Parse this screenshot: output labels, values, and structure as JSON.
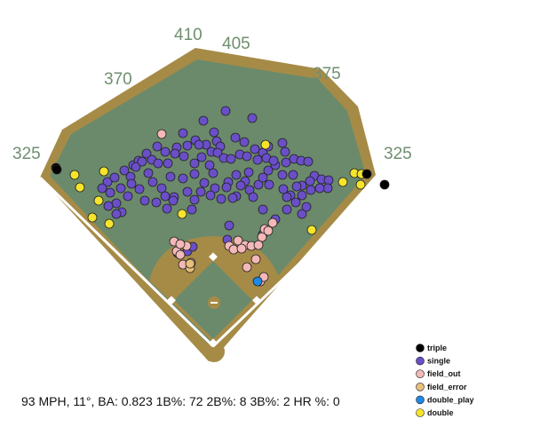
{
  "summary_text": "93 MPH, 11°, BA: 0.823 1B%: 72 2B%: 8 3B%: 2 HR %: 0",
  "colors": {
    "grass": "#6b8a6b",
    "dirt": "#a68b47",
    "infield_grass": "#6b8a6b",
    "lines": "#ffffff",
    "bases": "#ffffff",
    "text": "#6f8f6f"
  },
  "chart_data": {
    "type": "scatter",
    "title": "",
    "xlabel": "",
    "ylabel": "",
    "wall_distances": [
      "325",
      "370",
      "410",
      "405",
      "375",
      "325"
    ],
    "legend": [
      {
        "label": "triple",
        "color": "#000000"
      },
      {
        "label": "single",
        "color": "#6a4fc9"
      },
      {
        "label": "field_out",
        "color": "#f4b8b8"
      },
      {
        "label": "field_error",
        "color": "#e8c07a"
      },
      {
        "label": "double_play",
        "color": "#1e88e5"
      },
      {
        "label": "double",
        "color": "#f5e42b"
      }
    ],
    "series": [
      {
        "name": "triple",
        "points": [
          [
            63,
            189
          ],
          [
            64,
            191
          ],
          [
            413,
            196
          ],
          [
            433,
            208
          ]
        ]
      },
      {
        "name": "double",
        "points": [
          [
            84,
            197
          ],
          [
            90,
            211
          ],
          [
            117,
            193
          ],
          [
            111,
            226
          ],
          [
            104,
            245
          ],
          [
            123,
            252
          ],
          [
            205,
            241
          ],
          [
            299,
            163
          ],
          [
            351,
            259
          ],
          [
            386,
            205
          ],
          [
            399,
            195
          ],
          [
            406,
            208
          ],
          [
            407,
            196
          ]
        ]
      },
      {
        "name": "field_out",
        "points": [
          [
            182,
            151
          ],
          [
            196,
            272
          ],
          [
            199,
            283
          ],
          [
            203,
            287
          ],
          [
            210,
            277
          ],
          [
            206,
            298
          ],
          [
            215,
            296
          ],
          [
            203,
            275
          ],
          [
            258,
            277
          ],
          [
            263,
            281
          ],
          [
            268,
            271
          ],
          [
            276,
            276
          ],
          [
            283,
            277
          ],
          [
            291,
            276
          ],
          [
            295,
            267
          ],
          [
            298,
            258
          ],
          [
            307,
            251
          ],
          [
            302,
            260
          ],
          [
            288,
            292
          ],
          [
            293,
            317
          ],
          [
            297,
            312
          ],
          [
            278,
            301
          ],
          [
            272,
            280
          ]
        ]
      },
      {
        "name": "field_error",
        "points": [
          [
            214,
            302
          ],
          [
            214,
            297
          ]
        ]
      },
      {
        "name": "double_play",
        "points": [
          [
            290,
            317
          ]
        ]
      },
      {
        "name": "single",
        "points": [
          [
            229,
            136
          ],
          [
            254,
            125
          ],
          [
            284,
            133
          ],
          [
            206,
            150
          ],
          [
            220,
            158
          ],
          [
            232,
            163
          ],
          [
            241,
            149
          ],
          [
            244,
            159
          ],
          [
            248,
            165
          ],
          [
            265,
            155
          ],
          [
            275,
            160
          ],
          [
            287,
            168
          ],
          [
            296,
            172
          ],
          [
            302,
            165
          ],
          [
            318,
            161
          ],
          [
            321,
            171
          ],
          [
            150,
            186
          ],
          [
            156,
            181
          ],
          [
            165,
            173
          ],
          [
            177,
            165
          ],
          [
            186,
            171
          ],
          [
            199,
            166
          ],
          [
            211,
            164
          ],
          [
            224,
            163
          ],
          [
            238,
            171
          ],
          [
            245,
            172
          ],
          [
            252,
            178
          ],
          [
            260,
            179
          ],
          [
            270,
            174
          ],
          [
            278,
            176
          ],
          [
            290,
            180
          ],
          [
            300,
            178
          ],
          [
            310,
            186
          ],
          [
            322,
            183
          ],
          [
            331,
            179
          ],
          [
            339,
            181
          ],
          [
            347,
            182
          ],
          [
            354,
            198
          ],
          [
            362,
            202
          ],
          [
            370,
            203
          ],
          [
            369,
            212
          ],
          [
            360,
            212
          ],
          [
            349,
            204
          ],
          [
            340,
            209
          ],
          [
            330,
            197
          ],
          [
            318,
            197
          ],
          [
            140,
            192
          ],
          [
            147,
            199
          ],
          [
            153,
            188
          ],
          [
            160,
            182
          ],
          [
            167,
            195
          ],
          [
            171,
            180
          ],
          [
            178,
            184
          ],
          [
            189,
            184
          ],
          [
            197,
            173
          ],
          [
            207,
            176
          ],
          [
            219,
            184
          ],
          [
            227,
            177
          ],
          [
            236,
            186
          ],
          [
            240,
            195
          ],
          [
            230,
            206
          ],
          [
            242,
            212
          ],
          [
            249,
            224
          ],
          [
            257,
            205
          ],
          [
            266,
            197
          ],
          [
            276,
            204
          ],
          [
            281,
            214
          ],
          [
            291,
            208
          ],
          [
            303,
            208
          ],
          [
            319,
            213
          ],
          [
            327,
            220
          ],
          [
            333,
            228
          ],
          [
            340,
            241
          ],
          [
            345,
            233
          ],
          [
            323,
            236
          ],
          [
            310,
            247
          ],
          [
            296,
            236
          ],
          [
            121,
            205
          ],
          [
            129,
            200
          ],
          [
            115,
            212
          ],
          [
            124,
            217
          ],
          [
            136,
            212
          ],
          [
            144,
            221
          ],
          [
            131,
            229
          ],
          [
            137,
            239
          ],
          [
            122,
            232
          ],
          [
            131,
            241
          ],
          [
            148,
            207
          ],
          [
            157,
            213
          ],
          [
            163,
            226
          ],
          [
            176,
            228
          ],
          [
            172,
            205
          ],
          [
            182,
            212
          ],
          [
            186,
            221
          ],
          [
            188,
            235
          ],
          [
            196,
            222
          ],
          [
            211,
            216
          ],
          [
            219,
            225
          ],
          [
            216,
            236
          ],
          [
            226,
            216
          ],
          [
            237,
            220
          ],
          [
            266,
            221
          ],
          [
            285,
            222
          ],
          [
            262,
            223
          ],
          [
            192,
            199
          ],
          [
            195,
            226
          ],
          [
            206,
            201
          ],
          [
            219,
            196
          ],
          [
            255,
            211
          ],
          [
            271,
            209
          ],
          [
            280,
            194
          ],
          [
            302,
            192
          ],
          [
            308,
            181
          ],
          [
            296,
            200
          ],
          [
            323,
            222
          ],
          [
            340,
            220
          ],
          [
            334,
            210
          ],
          [
            350,
            214
          ],
          [
            211,
            283
          ],
          [
            200,
            285
          ],
          [
            258,
            254
          ],
          [
            296,
            264
          ],
          [
            256,
            270
          ],
          [
            217,
            278
          ]
        ]
      }
    ]
  }
}
